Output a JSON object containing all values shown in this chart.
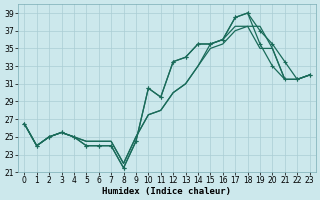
{
  "xlabel": "Humidex (Indice chaleur)",
  "bg_color": "#cce8ec",
  "grid_color": "#aacdd4",
  "line_color": "#1a6b5a",
  "xlim": [
    0,
    23
  ],
  "ylim": [
    21,
    40
  ],
  "yticks": [
    21,
    23,
    25,
    27,
    29,
    31,
    33,
    35,
    37,
    39
  ],
  "xticks": [
    0,
    1,
    2,
    3,
    4,
    5,
    6,
    7,
    8,
    9,
    10,
    11,
    12,
    13,
    14,
    15,
    16,
    17,
    18,
    19,
    20,
    21,
    22,
    23
  ],
  "series1_x": [
    0,
    1,
    2,
    3,
    4,
    5,
    6,
    7,
    8,
    9,
    10,
    11,
    12,
    13,
    14,
    15,
    16,
    17,
    18,
    19,
    20,
    21,
    22,
    23
  ],
  "series1_y": [
    26.5,
    24.0,
    25.0,
    25.5,
    25.0,
    24.0,
    24.0,
    24.0,
    21.5,
    24.5,
    30.5,
    29.5,
    33.5,
    34.0,
    35.5,
    35.5,
    36.0,
    38.5,
    39.0,
    37.0,
    35.5,
    33.5,
    31.5,
    32.0
  ],
  "series2_x": [
    0,
    1,
    2,
    3,
    4,
    5,
    6,
    7,
    8,
    9,
    10,
    11,
    12,
    13,
    14,
    15,
    16,
    17,
    18,
    19,
    20,
    21,
    22,
    23
  ],
  "series2_y": [
    26.5,
    24.0,
    25.0,
    25.5,
    25.0,
    24.0,
    24.0,
    24.0,
    21.5,
    24.5,
    30.5,
    29.5,
    33.5,
    34.0,
    35.5,
    35.5,
    36.0,
    38.5,
    39.0,
    35.5,
    33.0,
    31.5,
    31.5,
    32.0
  ],
  "series3_x": [
    0,
    1,
    2,
    3,
    4,
    5,
    6,
    7,
    8,
    9,
    10,
    11,
    12,
    13,
    14,
    15,
    16,
    17,
    18,
    19,
    20,
    21,
    22,
    23
  ],
  "series3_y": [
    26.5,
    24.0,
    25.0,
    25.5,
    25.0,
    24.5,
    24.5,
    24.5,
    22.0,
    25.0,
    27.5,
    28.0,
    30.0,
    31.0,
    33.0,
    35.5,
    36.0,
    37.5,
    37.5,
    35.0,
    35.0,
    31.5,
    31.5,
    32.0
  ],
  "series4_x": [
    0,
    1,
    2,
    3,
    4,
    5,
    6,
    7,
    8,
    9,
    10,
    11,
    12,
    13,
    14,
    15,
    16,
    17,
    18,
    19,
    20,
    21,
    22,
    23
  ],
  "series4_y": [
    26.5,
    24.0,
    25.0,
    25.5,
    25.0,
    24.5,
    24.5,
    24.5,
    22.0,
    25.0,
    27.5,
    28.0,
    30.0,
    31.0,
    33.0,
    35.0,
    35.5,
    37.0,
    37.5,
    37.5,
    35.0,
    31.5,
    31.5,
    32.0
  ],
  "figsize": [
    3.2,
    2.0
  ],
  "dpi": 100,
  "tick_fontsize": 5.5,
  "xlabel_fontsize": 6.5,
  "marker_size": 3,
  "lw": 0.9
}
